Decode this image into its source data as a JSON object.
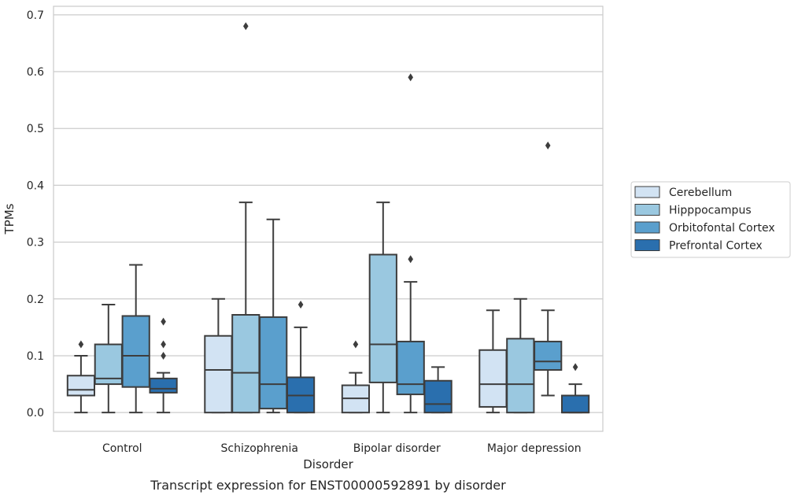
{
  "chart_data": {
    "type": "box",
    "title": "Transcript expression for ENST00000592891 by disorder",
    "xlabel": "Disorder",
    "ylabel": "TPMs",
    "ylim": [
      -0.033,
      0.715
    ],
    "yticks": [
      "0.0",
      "0.1",
      "0.2",
      "0.3",
      "0.4",
      "0.5",
      "0.6",
      "0.7"
    ],
    "grid": true,
    "legend_position": "right",
    "categories": [
      "Control",
      "Schizophrenia",
      "Bipolar disorder",
      "Major depression"
    ],
    "series": [
      {
        "name": "Cerebellum",
        "color": "#d2e3f3",
        "boxes": [
          {
            "whislo": 0.0,
            "q1": 0.03,
            "med": 0.04,
            "q3": 0.065,
            "whishi": 0.1,
            "fliers": [
              0.12
            ]
          },
          {
            "whislo": 0.0,
            "q1": 0.0,
            "med": 0.075,
            "q3": 0.135,
            "whishi": 0.2,
            "fliers": []
          },
          {
            "whislo": 0.0,
            "q1": 0.0,
            "med": 0.025,
            "q3": 0.048,
            "whishi": 0.07,
            "fliers": [
              0.12
            ]
          },
          {
            "whislo": 0.0,
            "q1": 0.01,
            "med": 0.05,
            "q3": 0.11,
            "whishi": 0.18,
            "fliers": []
          }
        ]
      },
      {
        "name": "Hipppocampus",
        "color": "#9ac8e0",
        "boxes": [
          {
            "whislo": 0.0,
            "q1": 0.05,
            "med": 0.06,
            "q3": 0.12,
            "whishi": 0.19,
            "fliers": []
          },
          {
            "whislo": 0.0,
            "q1": 0.0,
            "med": 0.07,
            "q3": 0.172,
            "whishi": 0.37,
            "fliers": [
              0.68
            ]
          },
          {
            "whislo": 0.0,
            "q1": 0.053,
            "med": 0.12,
            "q3": 0.278,
            "whishi": 0.37,
            "fliers": []
          },
          {
            "whislo": 0.0,
            "q1": 0.0,
            "med": 0.05,
            "q3": 0.13,
            "whishi": 0.2,
            "fliers": []
          }
        ]
      },
      {
        "name": "Orbitofontal Cortex",
        "color": "#5a9fcd",
        "boxes": [
          {
            "whislo": 0.0,
            "q1": 0.045,
            "med": 0.1,
            "q3": 0.17,
            "whishi": 0.26,
            "fliers": []
          },
          {
            "whislo": 0.0,
            "q1": 0.007,
            "med": 0.05,
            "q3": 0.168,
            "whishi": 0.34,
            "fliers": []
          },
          {
            "whislo": 0.0,
            "q1": 0.032,
            "med": 0.05,
            "q3": 0.125,
            "whishi": 0.23,
            "fliers": [
              0.59,
              0.27
            ]
          },
          {
            "whislo": 0.03,
            "q1": 0.075,
            "med": 0.09,
            "q3": 0.125,
            "whishi": 0.18,
            "fliers": [
              0.47
            ]
          }
        ]
      },
      {
        "name": "Prefrontal Cortex",
        "color": "#2a6fae",
        "boxes": [
          {
            "whislo": 0.0,
            "q1": 0.035,
            "med": 0.042,
            "q3": 0.06,
            "whishi": 0.07,
            "fliers": [
              0.16,
              0.12,
              0.1
            ]
          },
          {
            "whislo": 0.0,
            "q1": 0.0,
            "med": 0.03,
            "q3": 0.062,
            "whishi": 0.15,
            "fliers": [
              0.19
            ]
          },
          {
            "whislo": 0.0,
            "q1": 0.0,
            "med": 0.015,
            "q3": 0.056,
            "whishi": 0.08,
            "fliers": []
          },
          {
            "whislo": 0.0,
            "q1": 0.0,
            "med": 0.0,
            "q3": 0.03,
            "whishi": 0.05,
            "fliers": [
              0.08
            ]
          }
        ]
      }
    ]
  }
}
